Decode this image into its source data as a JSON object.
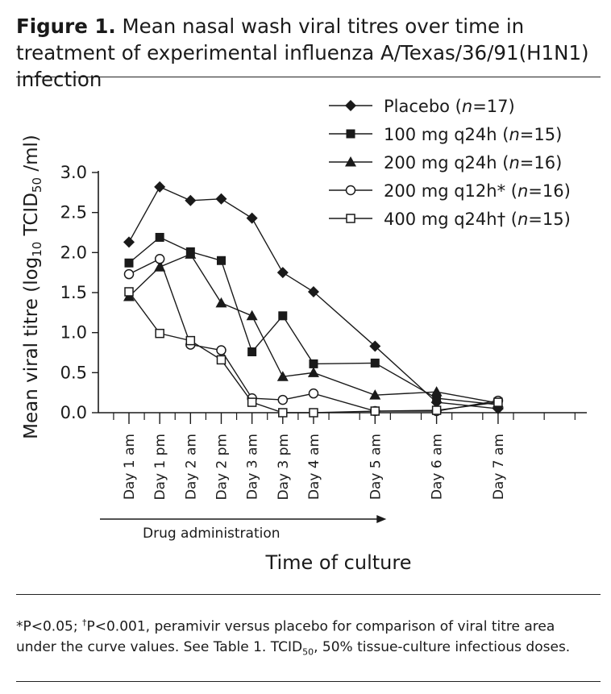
{
  "title": {
    "label": "Figure 1.",
    "text": "Mean nasal wash viral titres over time in treatment of experimental influenza A/Texas/36/91(H1N1) infection"
  },
  "chart_data": {
    "type": "line",
    "ylabel": "Mean viral titre (log10 TCID50 /ml)",
    "xlabel": "Time of culture",
    "ylim": [
      0,
      3.0
    ],
    "yticks": [
      "0.0",
      "0.5",
      "1.0",
      "1.5",
      "2.0",
      "2.5",
      "3.0"
    ],
    "x_hours": [
      0,
      12,
      24,
      36,
      48,
      60,
      72,
      96,
      120,
      144
    ],
    "categories": [
      "Day 1 am",
      "Day 1 pm",
      "Day 2 am",
      "Day 2 pm",
      "Day 3 am",
      "Day 3 pm",
      "Day 4 am",
      "Day 5 am",
      "Day 6 am",
      "Day 7 am"
    ],
    "series": [
      {
        "name": "Placebo (n=17)",
        "marker": "diamond",
        "values": [
          2.13,
          2.82,
          2.65,
          2.67,
          2.43,
          1.75,
          1.51,
          0.83,
          0.13,
          0.05
        ]
      },
      {
        "name": "100 mg q24h (n=15)",
        "marker": "square-filled",
        "values": [
          1.87,
          2.19,
          2.01,
          1.9,
          0.76,
          1.21,
          0.61,
          0.62,
          0.18,
          0.1
        ]
      },
      {
        "name": "200 mg q24h (n=16)",
        "marker": "triangle",
        "values": [
          1.45,
          1.82,
          1.98,
          1.37,
          1.21,
          0.45,
          0.5,
          0.22,
          0.26,
          0.12
        ]
      },
      {
        "name": "200 mg q12h* (n=16)",
        "marker": "circle-open",
        "values": [
          1.73,
          1.92,
          0.85,
          0.78,
          0.18,
          0.16,
          0.24,
          0.02,
          0.02,
          0.15
        ]
      },
      {
        "name": "400 mg q24h† (n=15)",
        "marker": "square-open",
        "values": [
          1.51,
          0.99,
          0.9,
          0.66,
          0.13,
          0.0,
          0.0,
          0.02,
          0.03,
          0.13
        ]
      }
    ],
    "arrow_label": "Drug administration",
    "arrow_range": [
      "Day 1 am",
      "Day 5 am"
    ],
    "legend_position": "top-right",
    "grid": false
  },
  "footnote": {
    "part1": "*P<0.05; ",
    "dagger": "†",
    "part2": "P<0.001, peramivir versus placebo for comparison of viral titre area under the curve values. See Table 1. TCID",
    "sub": "50",
    "part3": ", 50% tissue-culture infectious doses."
  }
}
